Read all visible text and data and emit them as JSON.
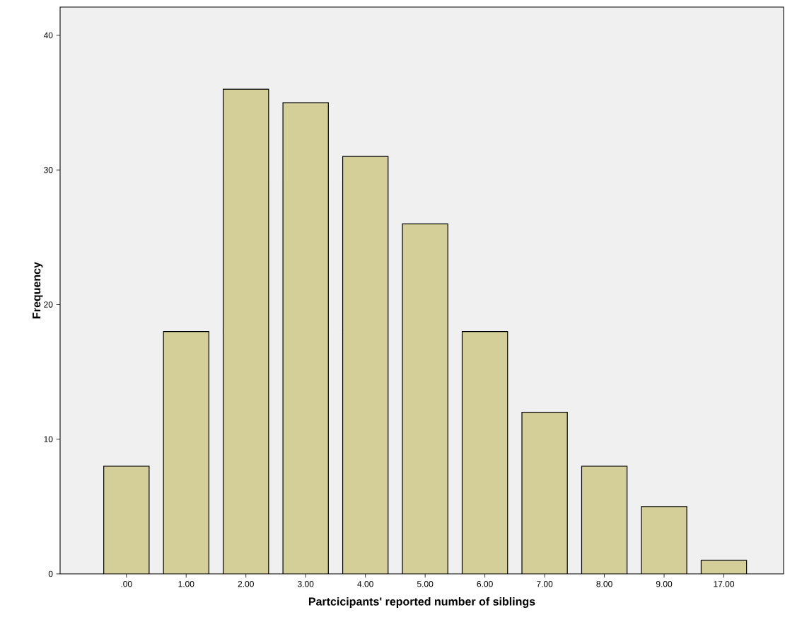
{
  "chart_data": {
    "type": "bar",
    "xlabel": "Partcicipants' reported number of siblings",
    "ylabel": "Frequency",
    "categories": [
      ".00",
      "1.00",
      "2.00",
      "3.00",
      "4.00",
      "5.00",
      "6.00",
      "7.00",
      "8.00",
      "9.00",
      "17.00"
    ],
    "values": [
      8,
      18,
      36,
      35,
      31,
      26,
      18,
      12,
      8,
      5,
      1
    ],
    "color": "#d4cf98",
    "ylim": [
      0,
      42.1
    ],
    "yticks": [
      0,
      10,
      20,
      30,
      40
    ],
    "grid": false
  }
}
